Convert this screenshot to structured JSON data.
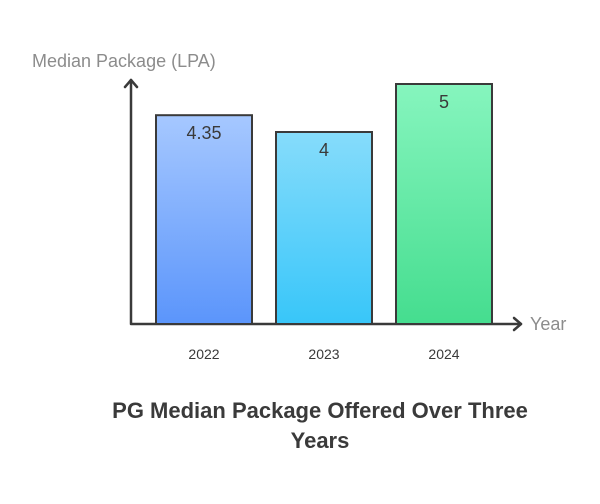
{
  "chart_data": {
    "type": "bar",
    "title": "PG Median Package Offered Over Three Years",
    "xlabel": "Year",
    "ylabel": "Median Package (LPA)",
    "categories": [
      "2022",
      "2023",
      "2024"
    ],
    "values": [
      4.35,
      4,
      5
    ],
    "value_labels": [
      "4.35",
      "4",
      "5"
    ],
    "ylim": [
      0,
      5
    ],
    "grid": false,
    "bar_colors": [
      {
        "top": "#a6c8ff",
        "bottom": "#5b95fb"
      },
      {
        "top": "#86dcfb",
        "bottom": "#38c6f9"
      },
      {
        "top": "#86f5be",
        "bottom": "#45dd8f"
      }
    ]
  }
}
